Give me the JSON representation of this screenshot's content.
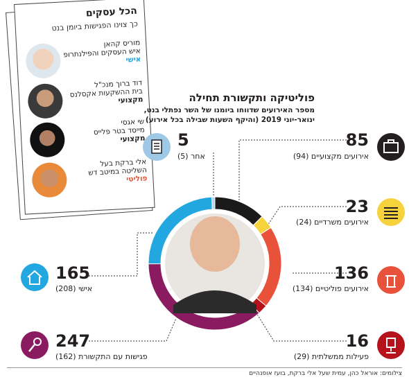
{
  "header": {
    "title": "פוליטיקה ותקשורת תחילה",
    "subtitle_line1": "מספר האירועים שדווחו ביומנו של השר נפתלי בנט,",
    "subtitle_line2": "ינואר-יוני 2019 (והיקף השעות שבילה בכל אירוע)"
  },
  "sidebar": {
    "title": "הכל עסקים",
    "subtitle": "כך צוינו הפגישות ביומן בנט",
    "people": [
      {
        "name": "מוריס קהאן",
        "desc": "איש העסקים והפילנתרופ",
        "role": "אישי",
        "role_type": "pers"
      },
      {
        "name": "דוד ברוך מנכ\"ל",
        "desc": "בית ההשקעות אקסלנס",
        "role": "מקצועי",
        "role_type": "pro"
      },
      {
        "name": "שי אגסי",
        "desc": "מייסד בטר פלייס",
        "role": "מקצועי",
        "role_type": "pro"
      },
      {
        "name": "אלי ברקת בעל",
        "desc": "השליטה במיטב דש",
        "role": "פוליטי",
        "role_type": "pol"
      }
    ]
  },
  "chart_data": {
    "type": "pie",
    "title": "פוליטיקה ותקשורת תחילה",
    "slices": [
      {
        "label": "אירועים מקצועיים",
        "value": 85,
        "hours": 94,
        "color": "#1a1a1a"
      },
      {
        "label": "אירועים משרדיים",
        "value": 23,
        "hours": 24,
        "color": "#f6d23d"
      },
      {
        "label": "אירועים פוליטיים",
        "value": 136,
        "hours": 134,
        "color": "#e8523a"
      },
      {
        "label": "פעילות ממשלתית",
        "value": 16,
        "hours": 29,
        "color": "#b5121b"
      },
      {
        "label": "פגישות עם התקשורת",
        "value": 247,
        "hours": 162,
        "color": "#8a1b61"
      },
      {
        "label": "אישי",
        "value": 165,
        "hours": 208,
        "color": "#23a7e0"
      },
      {
        "label": "אחר",
        "value": 5,
        "hours": 5,
        "color": "#b9d3e6"
      }
    ]
  },
  "labels": {
    "professional": {
      "value": "85",
      "text": "אירועים מקצועיים (94)"
    },
    "office": {
      "value": "23",
      "text": "אירועים משרדיים (24)"
    },
    "political": {
      "value": "136",
      "text": "אירועים פוליטיים (134)"
    },
    "government": {
      "value": "16",
      "text": "פעילות ממשלתית (29)"
    },
    "media": {
      "value": "247",
      "text": "פגישות עם התקשורת (162)"
    },
    "personal": {
      "value": "165",
      "text": "אישי (208)"
    },
    "other": {
      "value": "5",
      "text": "אחר (5)"
    }
  },
  "credit": "צילומים: אוראל כהן, עמית שעל אלי ברקת, בועז אופנהיים"
}
